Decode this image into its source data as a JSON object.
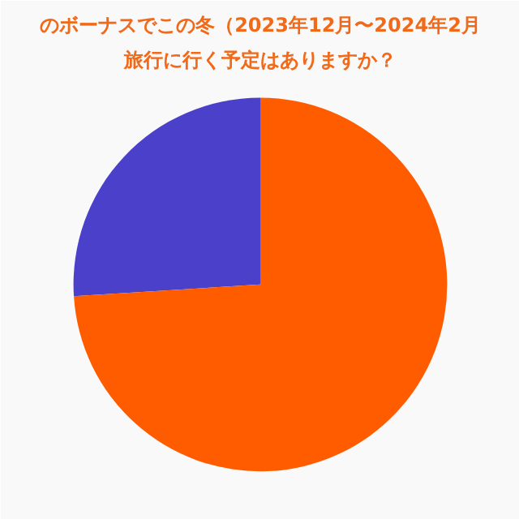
{
  "chart_data": {
    "type": "pie",
    "title": "のボーナスでこの冬（2023年12月〜2024年2月",
    "subtitle": "旅行に行く予定はありますか？",
    "categories": [
      null,
      null
    ],
    "values": [
      26,
      74
    ],
    "colors": [
      "#4a40c9",
      "#ff5c00"
    ]
  }
}
